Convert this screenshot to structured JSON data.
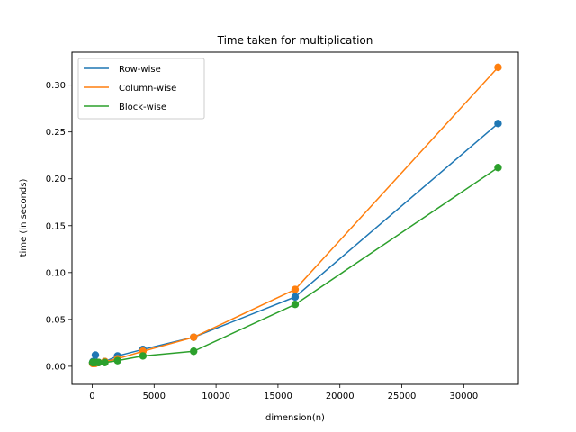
{
  "chart_data": {
    "type": "line",
    "title": "Time taken for multiplication",
    "xlabel": "dimension(n)",
    "ylabel": "time (in seconds)",
    "xlim": [
      -1634,
      34408
    ],
    "ylim": [
      -0.0193,
      0.3352
    ],
    "xticks": [
      0,
      5000,
      10000,
      15000,
      20000,
      25000,
      30000
    ],
    "xtick_labels": [
      "0",
      "5000",
      "10000",
      "15000",
      "20000",
      "25000",
      "30000"
    ],
    "yticks": [
      0.0,
      0.05,
      0.1,
      0.15,
      0.2,
      0.25,
      0.3
    ],
    "ytick_labels": [
      "0.00",
      "0.05",
      "0.10",
      "0.15",
      "0.20",
      "0.25",
      "0.30"
    ],
    "grid": false,
    "legend_position": "top-left",
    "x": [
      32,
      64,
      128,
      256,
      512,
      1024,
      2048,
      4096,
      8192,
      16384,
      32768
    ],
    "series": [
      {
        "name": "Row-wise",
        "color": "#1f77b4",
        "values": [
          0.004,
          0.005,
          0.004,
          0.012,
          0.004,
          0.005,
          0.011,
          0.018,
          0.031,
          0.074,
          0.259
        ]
      },
      {
        "name": "Column-wise",
        "color": "#ff7f0e",
        "values": [
          0.003,
          0.003,
          0.003,
          0.003,
          0.004,
          0.005,
          0.008,
          0.016,
          0.031,
          0.082,
          0.319
        ]
      },
      {
        "name": "Block-wise",
        "color": "#2ca02c",
        "values": [
          0.004,
          0.004,
          0.004,
          0.004,
          0.004,
          0.004,
          0.006,
          0.011,
          0.016,
          0.066,
          0.212
        ]
      }
    ]
  }
}
